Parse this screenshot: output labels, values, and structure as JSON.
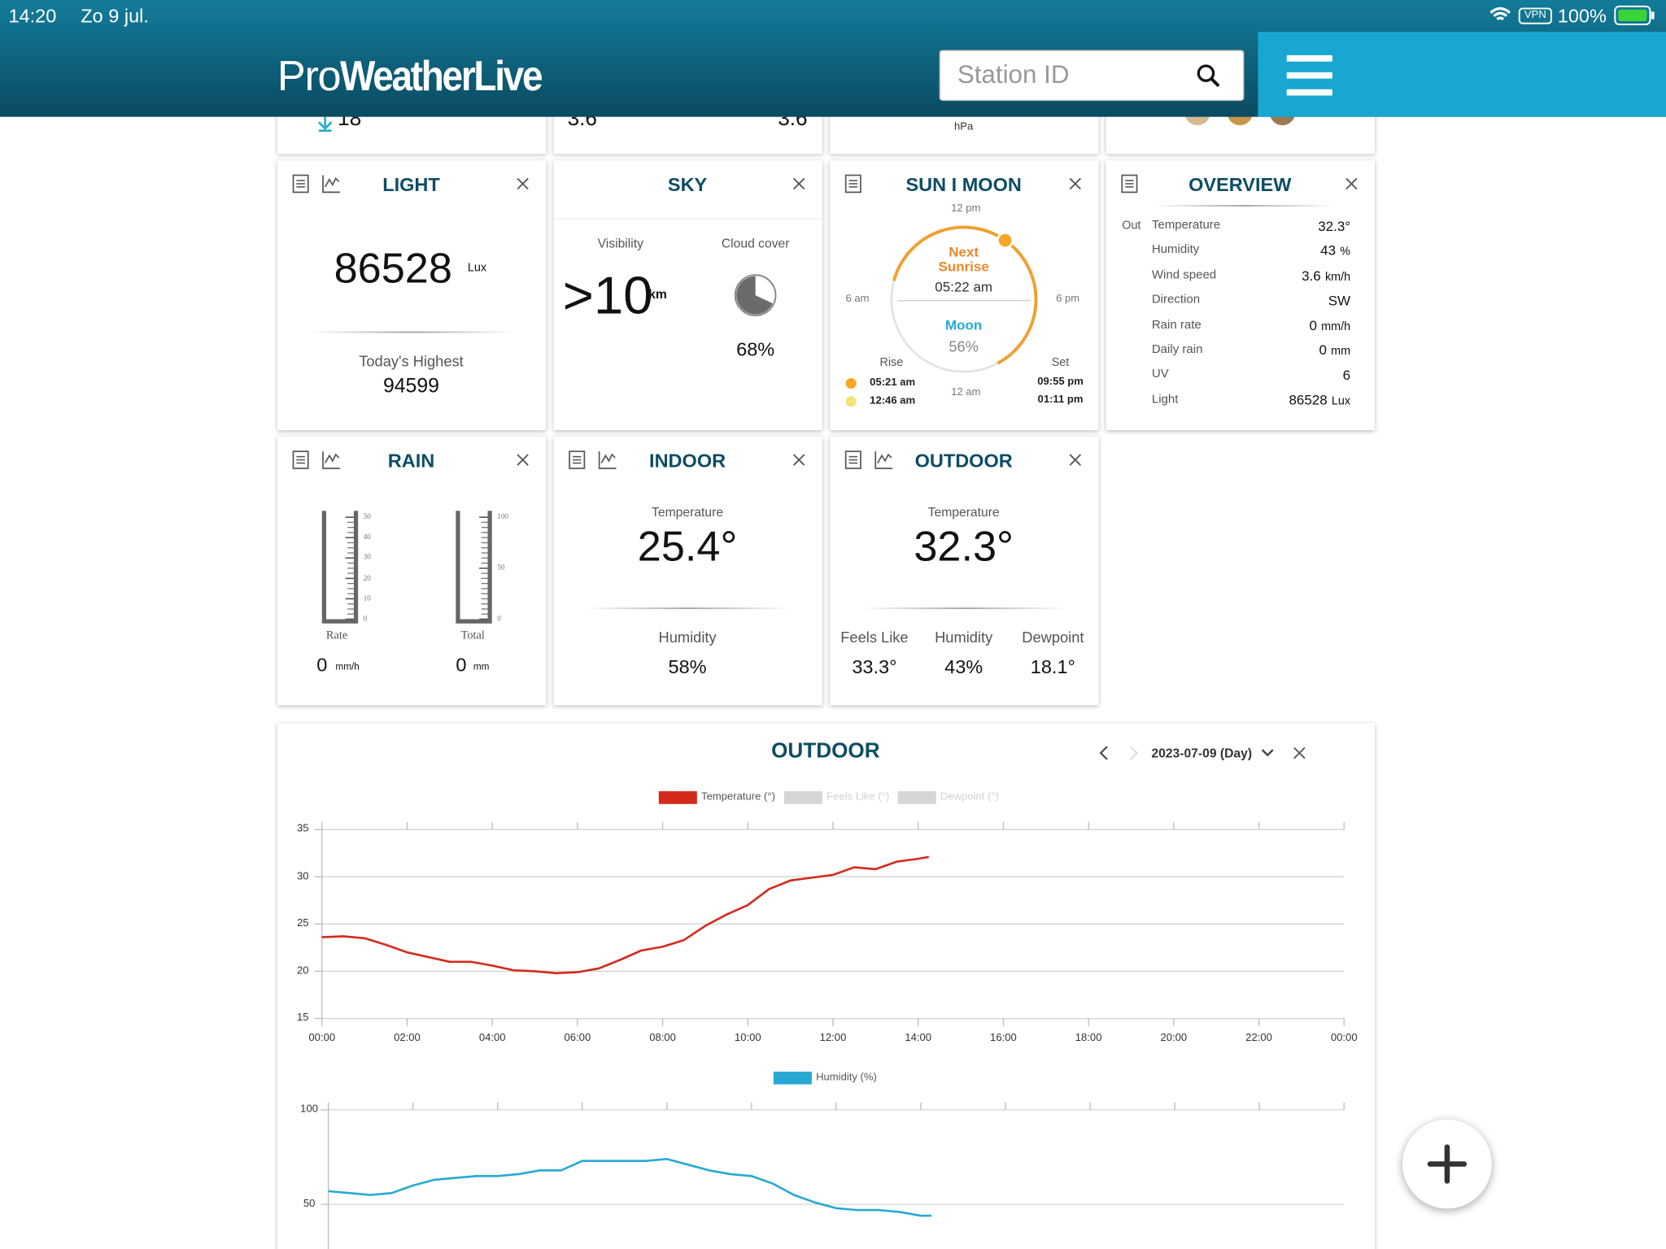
{
  "status_bar": {
    "time": "14:20",
    "date": "Zo 9 jul.",
    "vpn": "VPN",
    "battery": "100%"
  },
  "header": {
    "logo_pro": "Pro",
    "logo_main": "WeatherLive",
    "search_placeholder": "Station ID"
  },
  "top_row": {
    "temperature_low": "18°",
    "wind_a": "3.6",
    "wind_b": "3.6",
    "pressure_unit": "hPa"
  },
  "light": {
    "title": "LIGHT",
    "value": "86528",
    "unit": "Lux",
    "highest_label": "Today's Highest",
    "highest": "94599"
  },
  "sky": {
    "title": "SKY",
    "visibility_label": "Visibility",
    "visibility": ">10",
    "visibility_unit": "km",
    "cloud_label": "Cloud cover",
    "cloud_cover": {
      "value": 68,
      "label": "68%"
    }
  },
  "sun_moon": {
    "title": "SUN I MOON",
    "noon": "12 pm",
    "morning": "6 am",
    "evening": "6 pm",
    "midnight": "12 am",
    "next_label_1": "Next",
    "next_label_2": "Sunrise",
    "next_time": "05:22 am",
    "moon_label": "Moon",
    "moon_phase": "56%",
    "rise_label": "Rise",
    "set_label": "Set",
    "sun_rise": "05:21 am",
    "sun_set": "09:55 pm",
    "moon_rise": "12:46 am",
    "moon_set": "01:11 pm"
  },
  "overview": {
    "title": "OVERVIEW",
    "prefix": "Out",
    "rows": [
      {
        "label": "Temperature",
        "value": "32.3°"
      },
      {
        "label": "Humidity",
        "value": "43",
        "unit": "%"
      },
      {
        "label": "Wind speed",
        "value": "3.6",
        "unit": "km/h"
      },
      {
        "label": "Direction",
        "value": "SW"
      },
      {
        "label": "Rain rate",
        "value": "0",
        "unit": "mm/h"
      },
      {
        "label": "Daily rain",
        "value": "0",
        "unit": "mm"
      },
      {
        "label": "UV",
        "value": "6"
      },
      {
        "label": "Light",
        "value": "86528",
        "unit": "Lux"
      }
    ]
  },
  "rain": {
    "title": "RAIN",
    "rate_ticks": [
      50,
      40,
      30,
      20,
      10,
      0
    ],
    "total_ticks": [
      100,
      50,
      0
    ],
    "rate_label": "Rate",
    "total_label": "Total",
    "rate": 0,
    "rate_unit": "mm/h",
    "total": 0,
    "total_unit": "mm"
  },
  "indoor": {
    "title": "INDOOR",
    "temperature_label": "Temperature",
    "temperature": "25.4°",
    "humidity_label": "Humidity",
    "humidity": "58%"
  },
  "outdoor": {
    "title": "OUTDOOR",
    "temperature_label": "Temperature",
    "temperature": "32.3°",
    "feels_like_label": "Feels Like",
    "feels_like": "33.3°",
    "humidity_label": "Humidity",
    "humidity": "43%",
    "dewpoint_label": "Dewpoint",
    "dewpoint": "18.1°"
  },
  "graphs": {
    "title": "OUTDOOR",
    "period": "2023-07-09 (Day)"
  },
  "chart_data": [
    {
      "type": "line",
      "x": [
        0,
        0.5,
        1,
        1.5,
        2,
        2.5,
        3,
        3.5,
        4,
        4.5,
        5,
        5.5,
        6,
        6.5,
        7,
        7.5,
        8,
        8.5,
        9,
        9.5,
        10,
        10.5,
        11,
        11.5,
        12,
        12.5,
        13,
        13.5,
        14,
        14.25
      ],
      "xlim": [
        0,
        24
      ],
      "xticks": [
        {
          "value": 0,
          "label": "00:00"
        },
        {
          "value": 2,
          "label": "02:00"
        },
        {
          "value": 4,
          "label": "04:00"
        },
        {
          "value": 6,
          "label": "06:00"
        },
        {
          "value": 8,
          "label": "08:00"
        },
        {
          "value": 10,
          "label": "10:00"
        },
        {
          "value": 12,
          "label": "12:00"
        },
        {
          "value": 14,
          "label": "14:00"
        },
        {
          "value": 16,
          "label": "16:00"
        },
        {
          "value": 18,
          "label": "18:00"
        },
        {
          "value": 20,
          "label": "20:00"
        },
        {
          "value": 22,
          "label": "22:00"
        },
        {
          "value": 24,
          "label": "00:00"
        }
      ],
      "ylim": [
        15,
        35
      ],
      "yticks": [
        15,
        20,
        25,
        30,
        35
      ],
      "grid": true,
      "series": [
        {
          "name": "Temperature (°)",
          "color": "#d42a1c",
          "values": [
            23.6,
            23.7,
            23.5,
            22.8,
            22.0,
            21.5,
            21.0,
            21.0,
            20.6,
            20.1,
            20.0,
            19.8,
            19.9,
            20.3,
            21.2,
            22.2,
            22.6,
            23.3,
            24.8,
            26.0,
            27.0,
            28.7,
            29.6,
            29.9,
            30.2,
            31.0,
            30.8,
            31.6,
            31.9,
            32.1
          ]
        }
      ],
      "disabled_legend": [
        {
          "name": "Feels Like (°)",
          "color": "#d6d6d6"
        },
        {
          "name": "Dewpoint (°)",
          "color": "#d6d6d6"
        }
      ]
    },
    {
      "type": "line",
      "x": [
        0,
        0.5,
        1,
        1.5,
        2,
        2.5,
        3,
        3.5,
        4,
        4.5,
        5,
        5.5,
        6,
        6.5,
        7,
        7.5,
        8,
        8.5,
        9,
        9.5,
        10,
        10.5,
        11,
        11.5,
        12,
        12.5,
        13,
        13.5,
        14,
        14.25
      ],
      "xlim": [
        0,
        24
      ],
      "xticks": [
        0,
        2,
        4,
        6,
        8,
        10,
        12,
        14,
        16,
        18,
        20,
        22,
        24
      ],
      "ylim": [
        0,
        100
      ],
      "yticks": [
        50,
        100
      ],
      "grid": true,
      "series": [
        {
          "name": "Humidity (%)",
          "color": "#27a9d3",
          "values": [
            57,
            56,
            55,
            56,
            60,
            63,
            64,
            65,
            65,
            66,
            68,
            68,
            73,
            73,
            73,
            73,
            74,
            71,
            68,
            66,
            65,
            61,
            55,
            51,
            48,
            47,
            47,
            46,
            44,
            44
          ]
        }
      ]
    }
  ]
}
